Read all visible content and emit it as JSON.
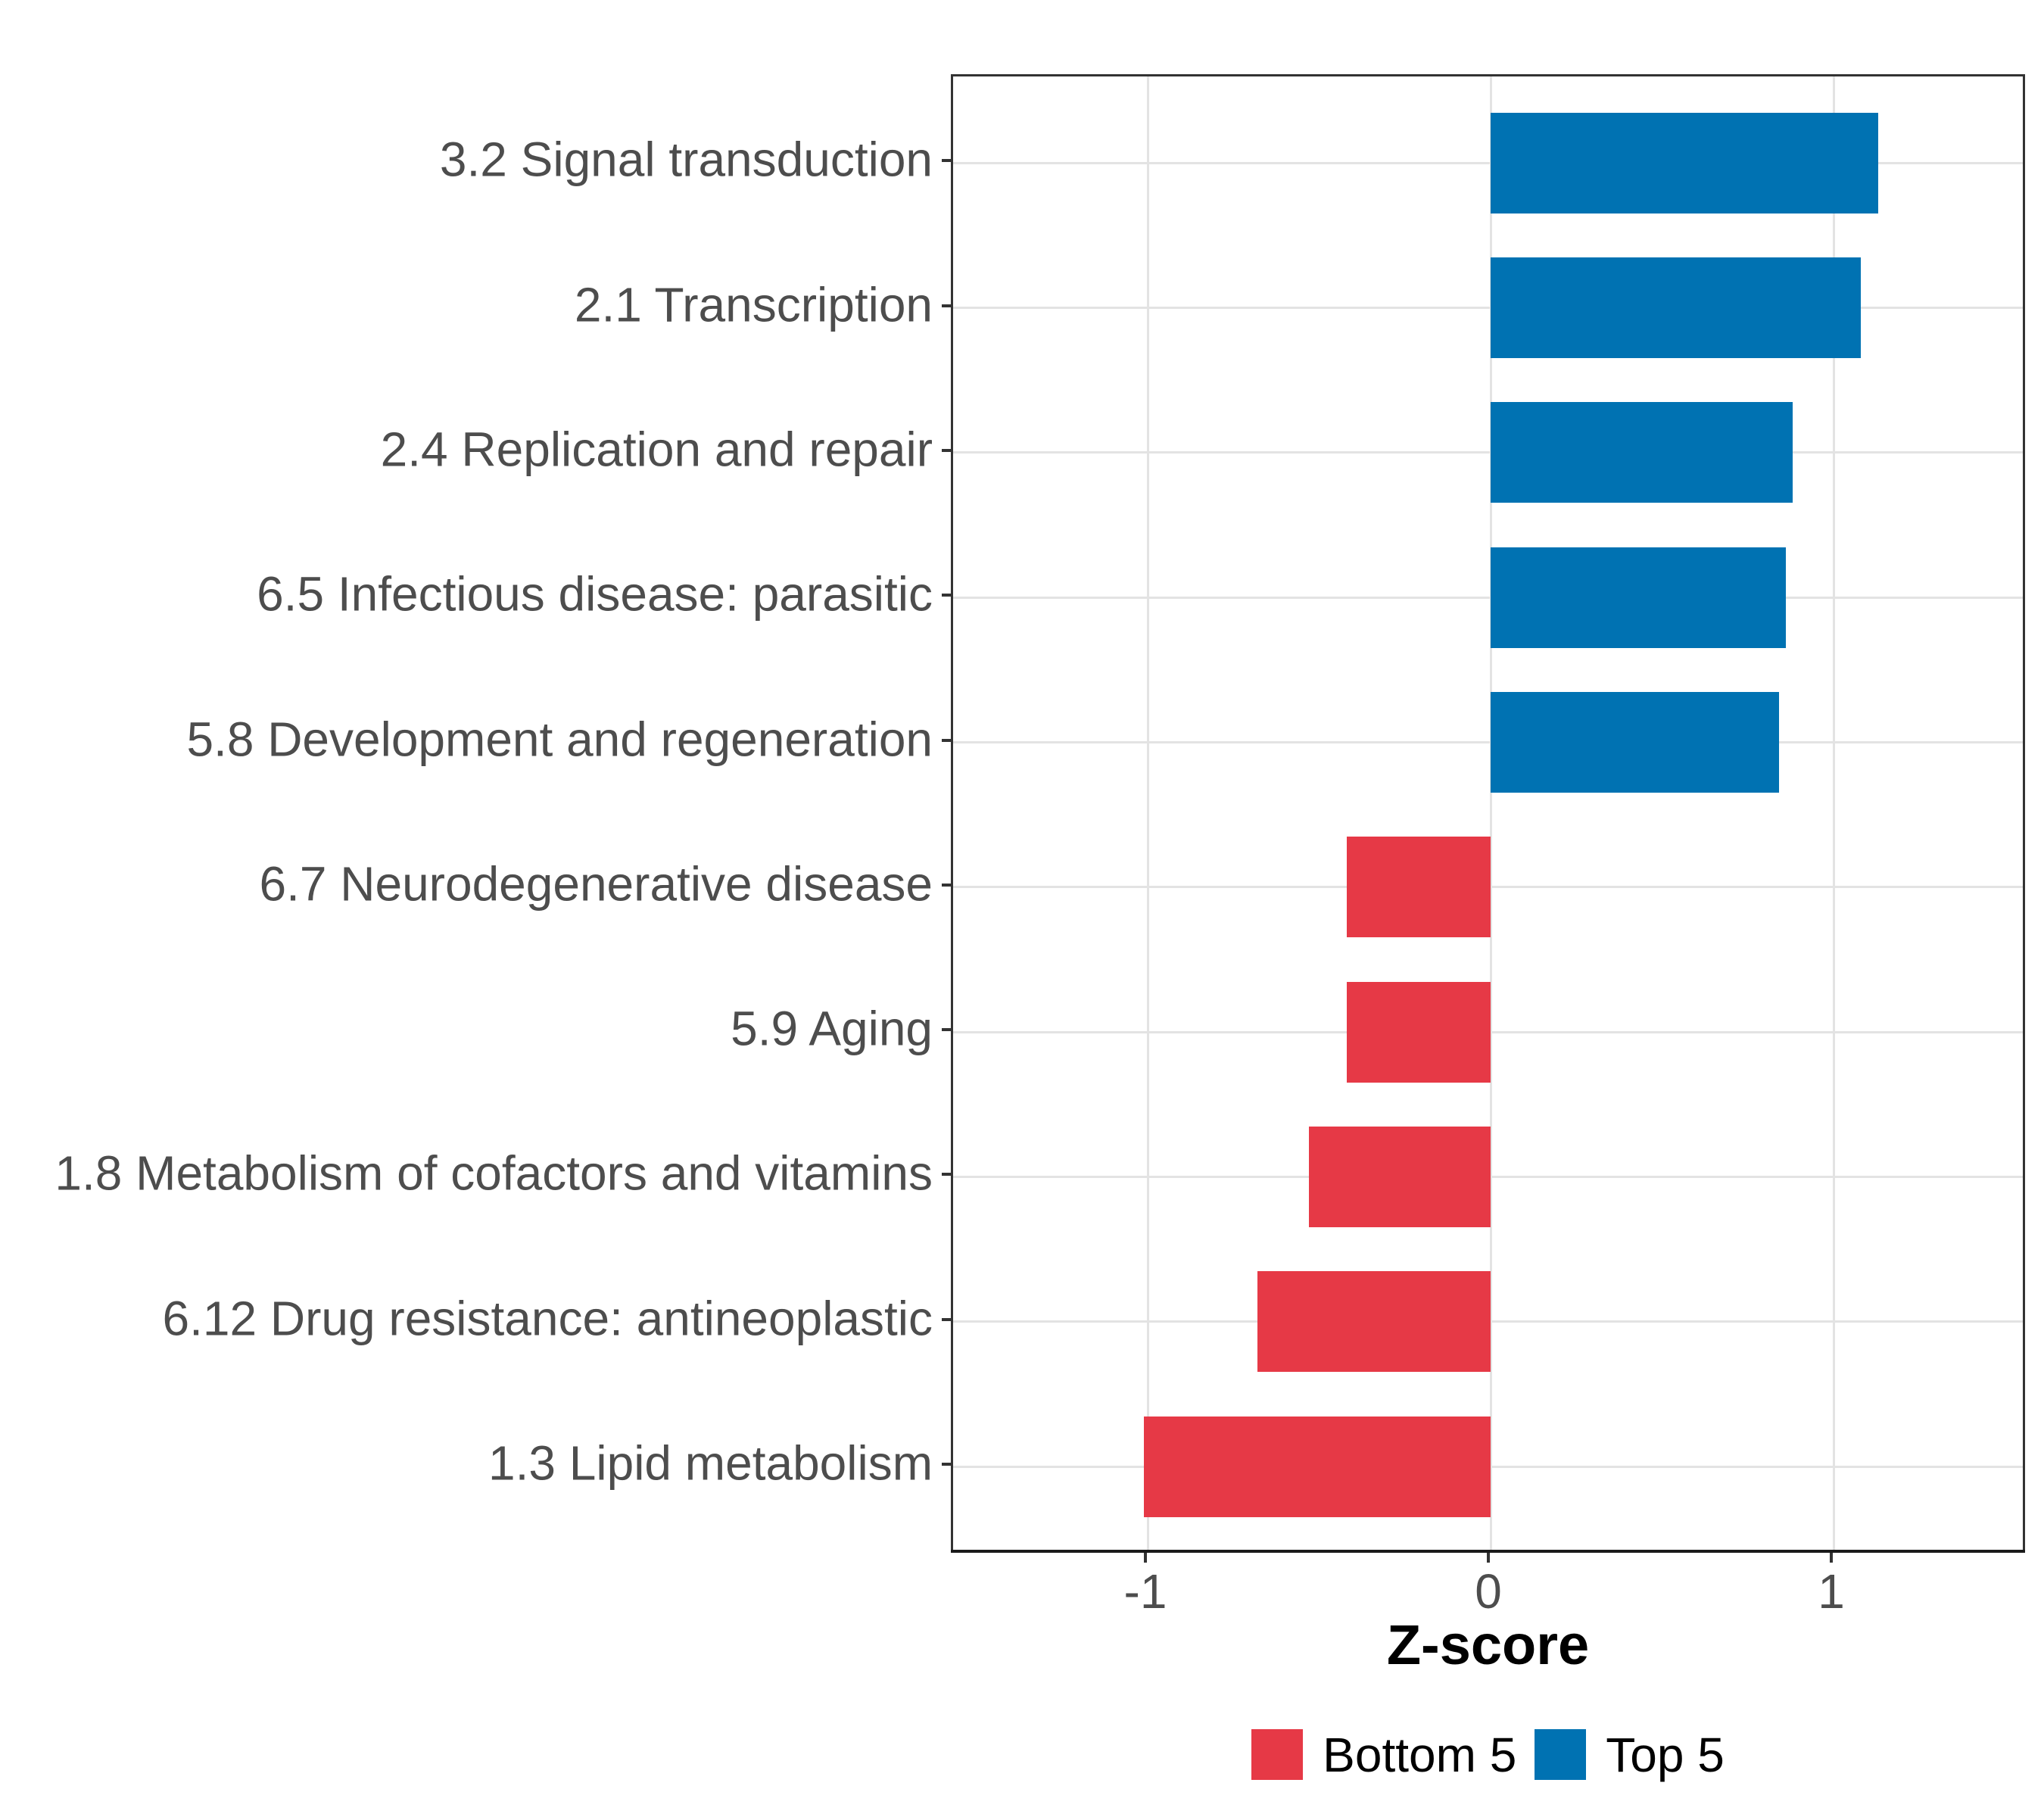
{
  "chart_data": {
    "type": "bar",
    "orientation": "horizontal",
    "title": "",
    "xlabel": "Z-score",
    "ylabel": "",
    "categories": [
      "3.2 Signal transduction",
      "2.1 Transcription",
      "2.4 Replication and repair",
      "6.5 Infectious disease: parasitic",
      "5.8 Development and regeneration",
      "6.7 Neurodegenerative disease",
      "5.9 Aging",
      "1.8 Metabolism of cofactors and vitamins",
      "6.12 Drug resistance: antineoplastic",
      "1.3 Lipid metabolism"
    ],
    "values": [
      1.13,
      1.08,
      0.88,
      0.86,
      0.84,
      -0.42,
      -0.42,
      -0.53,
      -0.68,
      -1.01
    ],
    "groups": [
      "Top 5",
      "Top 5",
      "Top 5",
      "Top 5",
      "Top 5",
      "Bottom 5",
      "Bottom 5",
      "Bottom 5",
      "Bottom 5",
      "Bottom 5"
    ],
    "x_ticks": [
      -1,
      0,
      1
    ],
    "x_tick_labels": [
      "-1",
      "0",
      "1"
    ],
    "xlim": [
      -1.57,
      1.57
    ],
    "grid": "major-only",
    "legend_position": "bottom",
    "legend": [
      {
        "label": "Bottom 5",
        "color": "#e63946"
      },
      {
        "label": "Top 5",
        "color": "#0072b2"
      }
    ]
  },
  "colors": {
    "top5": "#0072b2",
    "bottom5": "#e63946",
    "gridline": "#e3e3e3",
    "panel_border": "#333333",
    "axis_line": "#1a1a1a",
    "axis_text": "#4d4d4d",
    "title_text": "#000000",
    "background": "#ffffff"
  }
}
